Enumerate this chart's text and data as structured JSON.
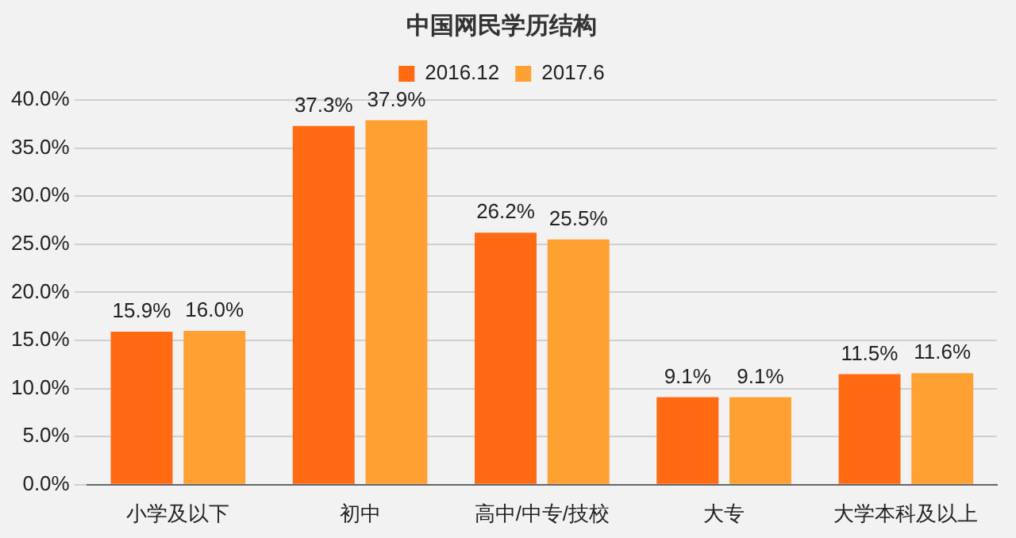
{
  "chart_data": {
    "type": "bar",
    "title": "中国网民学历结构",
    "categories": [
      "小学及以下",
      "初中",
      "高中/中专/技校",
      "大专",
      "大学本科及以上"
    ],
    "series": [
      {
        "name": "2016.12",
        "color": "#ff6a13",
        "values": [
          15.9,
          37.3,
          26.2,
          9.1,
          11.5
        ],
        "value_labels": [
          "15.9%",
          "37.3%",
          "26.2%",
          "9.1%",
          "11.5%"
        ]
      },
      {
        "name": "2017.6",
        "color": "#ffa033",
        "values": [
          16.0,
          37.9,
          25.5,
          9.1,
          11.6
        ],
        "value_labels": [
          "16.0%",
          "37.9%",
          "25.5%",
          "9.1%",
          "11.6%"
        ]
      }
    ],
    "ylim": [
      0,
      40
    ],
    "yticks": [
      {
        "value": 0,
        "label": "0.0%"
      },
      {
        "value": 5,
        "label": "5.0%"
      },
      {
        "value": 10,
        "label": "10.0%"
      },
      {
        "value": 15,
        "label": "15.0%"
      },
      {
        "value": 20,
        "label": "20.0%"
      },
      {
        "value": 25,
        "label": "25.0%"
      },
      {
        "value": 30,
        "label": "30.0%"
      },
      {
        "value": 35,
        "label": "35.0%"
      },
      {
        "value": 40,
        "label": "40.0%"
      }
    ],
    "grid": "y",
    "legend": "top"
  }
}
